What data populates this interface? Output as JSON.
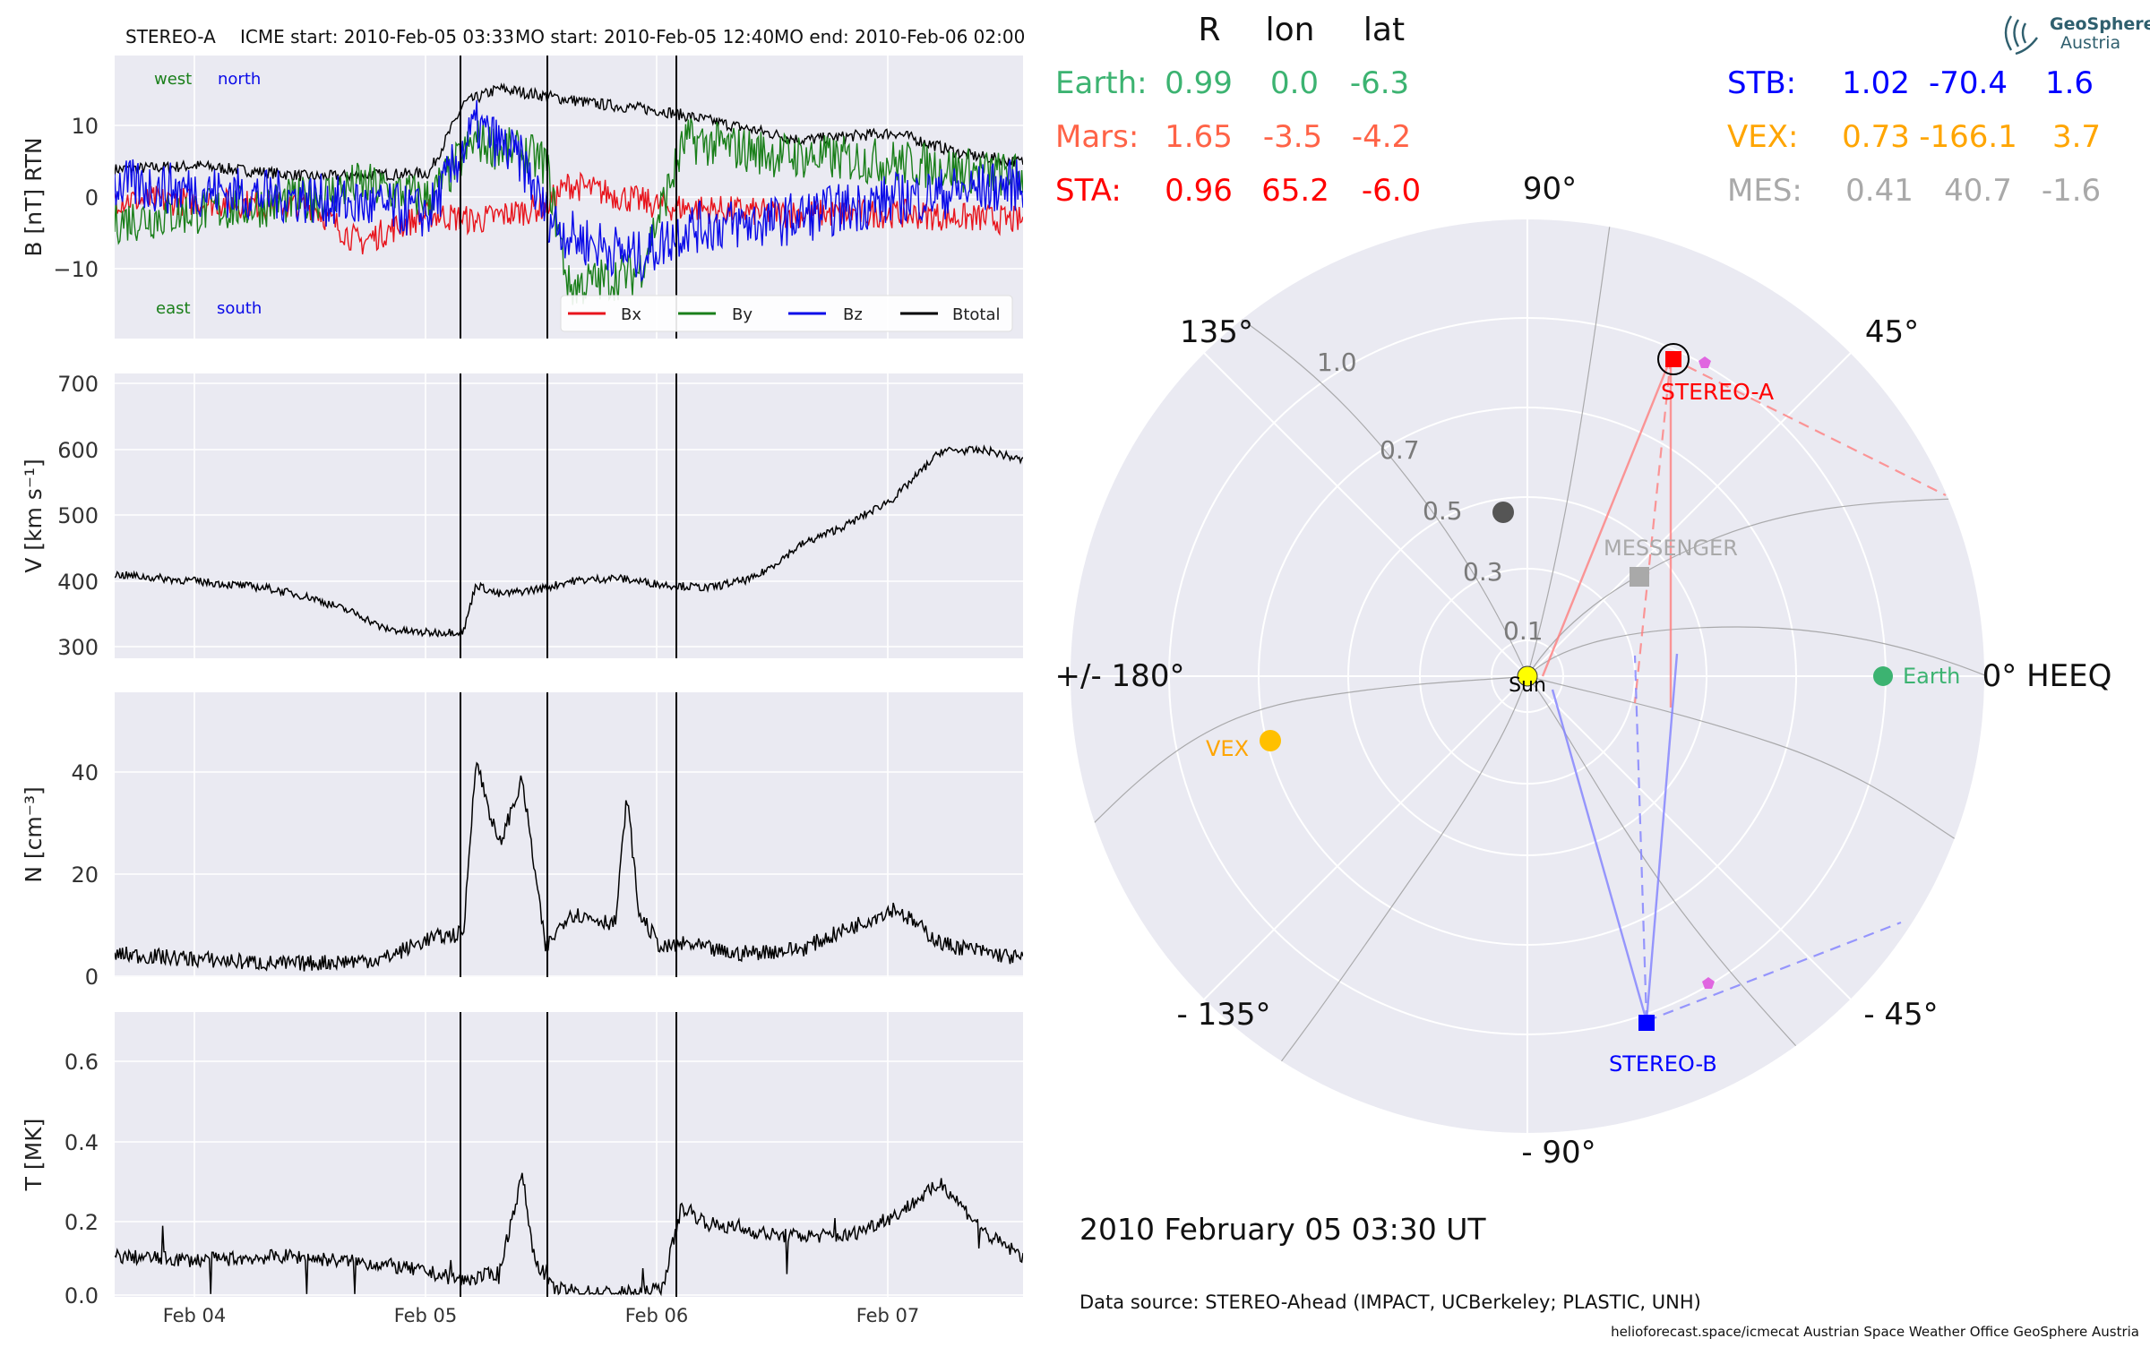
{
  "header": {
    "spacecraft": "STEREO-A",
    "icme_start": "ICME start: 2010-Feb-05 03:33",
    "mo_start": "MO start: 2010-Feb-05 12:40",
    "mo_end": "MO end: 2010-Feb-06 02:00"
  },
  "colors": {
    "bx": "#e8141c",
    "by": "#1a7f1a",
    "bz": "#0a0ae8",
    "btotal": "#000000",
    "earth": "#3cb371",
    "mars": "#ff6347",
    "sta": "#ff0000",
    "stb": "#0000ff",
    "vex": "#ffa500",
    "mes": "#a9a9a9",
    "panel_bg": "#eaeaf2"
  },
  "panels": {
    "b": {
      "ylabel": "B [nT] RTN",
      "ticks": [
        "10",
        "0",
        "−10"
      ],
      "west": "west",
      "north": "north",
      "east": "east",
      "south": "south",
      "legend": [
        "Bx",
        "By",
        "Bz",
        "Btotal"
      ]
    },
    "v": {
      "ylabel": "V [km s⁻¹]",
      "ticks": [
        "700",
        "600",
        "500",
        "400",
        "300"
      ]
    },
    "n": {
      "ylabel": "N [cm⁻³]",
      "ticks": [
        "40",
        "20",
        "0"
      ]
    },
    "t": {
      "ylabel": "T [MK]",
      "ticks": [
        "0.6",
        "0.4",
        "0.2",
        "0.0"
      ]
    },
    "xticks": [
      "Feb 04",
      "Feb 05",
      "Feb 06",
      "Feb 07"
    ]
  },
  "positions": {
    "headers": {
      "r": "R",
      "lon": "lon",
      "lat": "lat"
    },
    "left": [
      {
        "name": "Earth:",
        "r": "0.99",
        "lon": "0.0",
        "lat": "-6.3"
      },
      {
        "name": "Mars:",
        "r": "1.65",
        "lon": "-3.5",
        "lat": "-4.2"
      },
      {
        "name": "STA:",
        "r": "0.96",
        "lon": "65.2",
        "lat": "-6.0"
      }
    ],
    "right": [
      {
        "name": "STB:",
        "r": "1.02",
        "lon": "-70.4",
        "lat": "1.6"
      },
      {
        "name": "VEX:",
        "r": "0.73",
        "lon": "-166.1",
        "lat": "3.7"
      },
      {
        "name": "MES:",
        "r": "0.41",
        "lon": "40.7",
        "lat": "-1.6"
      }
    ]
  },
  "polar": {
    "angle_labels": {
      "a90": "90°",
      "a45": "45°",
      "a135": "135°",
      "a180": "+/- 180°",
      "a0": "0° HEEQ",
      "am45": "- 45°",
      "am90": "- 90°",
      "am135": "- 135°"
    },
    "radial_labels": [
      "1.0",
      "0.7",
      "0.5",
      "0.3",
      "0.1"
    ],
    "bodies": {
      "sun": "Sun",
      "earth": "Earth",
      "stereo_a": "STEREO-A",
      "stereo_b": "STEREO-B",
      "messenger": "MESSENGER",
      "vex": "VEX"
    }
  },
  "footer": {
    "datetime": "2010 February 05  03:30 UT",
    "data_source": "Data source: STEREO-Ahead (IMPACT, UCBerkeley; PLASTIC, UNH)",
    "credits": "helioforecast.space/icmecat   Austrian Space Weather Office   GeoSphere Austria"
  },
  "logo": {
    "line1": "GeoSphere",
    "line2": "Austria"
  },
  "chart_data": [
    {
      "type": "line",
      "title": "STEREO-A    ICME start: 2010-Feb-05 03:33    MO start: 2010-Feb-05 12:40    MO end: 2010-Feb-06 02:00",
      "xlabel": "",
      "ylabel": "B [nT] RTN",
      "x_unit": "days since 2010-02-04 00:00",
      "xlim": [
        -0.35,
        3.55
      ],
      "ylim": [
        -19,
        19.5
      ],
      "event_lines": [
        1.148,
        1.528,
        2.083
      ],
      "series": [
        {
          "name": "Btotal",
          "x": [
            -0.35,
            0,
            0.5,
            1.0,
            1.15,
            1.3,
            1.5,
            1.7,
            2.0,
            2.3,
            2.6,
            3.0,
            3.3,
            3.55
          ],
          "y": [
            4,
            4.5,
            3,
            3.5,
            13,
            15,
            14,
            13,
            12,
            10,
            8,
            9,
            6,
            5
          ]
        },
        {
          "name": "Bx",
          "x": [
            -0.35,
            0.5,
            0.7,
            1.0,
            1.2,
            1.5,
            1.6,
            2.0,
            2.5,
            3.0,
            3.55
          ],
          "y": [
            0,
            -1,
            -6,
            -2,
            -3,
            -1,
            2,
            -1,
            -2,
            -2,
            -3
          ]
        },
        {
          "name": "By",
          "x": [
            -0.35,
            0.5,
            0.7,
            1.0,
            1.2,
            1.5,
            1.6,
            1.9,
            2.1,
            2.5,
            3.0,
            3.55
          ],
          "y": [
            -3,
            0,
            2,
            0,
            8,
            5,
            -12,
            -10,
            8,
            6,
            5,
            3
          ]
        },
        {
          "name": "Bz",
          "x": [
            -0.35,
            0.5,
            1.0,
            1.2,
            1.4,
            1.5,
            1.6,
            1.9,
            2.1,
            2.5,
            3.0,
            3.55
          ],
          "y": [
            2,
            0,
            -2,
            10,
            5,
            -2,
            -5,
            -8,
            -4,
            -3,
            0,
            2
          ]
        }
      ]
    },
    {
      "type": "line",
      "xlabel": "",
      "ylabel": "V [km s⁻¹]",
      "xlim": [
        -0.35,
        3.55
      ],
      "ylim": [
        290,
        715
      ],
      "series": [
        {
          "name": "V",
          "x": [
            -0.35,
            0,
            0.3,
            0.5,
            0.7,
            0.8,
            0.9,
            1.0,
            1.148,
            1.2,
            1.3,
            1.5,
            1.6,
            1.8,
            2.0,
            2.2,
            2.4,
            2.6,
            2.8,
            3.0,
            3.2,
            3.4,
            3.55
          ],
          "y": [
            415,
            405,
            395,
            380,
            355,
            335,
            330,
            328,
            330,
            400,
            385,
            395,
            405,
            410,
            400,
            395,
            410,
            460,
            490,
            530,
            600,
            600,
            585
          ]
        }
      ]
    },
    {
      "type": "line",
      "xlabel": "",
      "ylabel": "N [cm⁻³]",
      "xlim": [
        -0.35,
        3.55
      ],
      "ylim": [
        -0.5,
        55
      ],
      "series": [
        {
          "name": "N",
          "x": [
            -0.35,
            0,
            0.4,
            0.8,
            1.0,
            1.148,
            1.2,
            1.3,
            1.4,
            1.5,
            1.6,
            1.8,
            1.85,
            1.9,
            2.0,
            2.1,
            2.3,
            2.6,
            3.0,
            3.2,
            3.55
          ],
          "y": [
            4,
            3,
            2,
            3,
            7,
            8,
            42,
            25,
            38,
            5,
            12,
            10,
            35,
            12,
            5,
            6,
            4,
            5,
            13,
            6,
            3
          ]
        }
      ]
    },
    {
      "type": "line",
      "xlabel": "",
      "ylabel": "T [MK]",
      "xlim": [
        -0.35,
        3.55
      ],
      "ylim": [
        0,
        0.7
      ],
      "series": [
        {
          "name": "T",
          "x": [
            -0.35,
            0,
            0.4,
            0.8,
            1.0,
            1.148,
            1.3,
            1.4,
            1.45,
            1.528,
            1.7,
            1.9,
            2.0,
            2.083,
            2.2,
            2.5,
            2.8,
            3.0,
            3.2,
            3.4,
            3.55
          ],
          "y": [
            0.1,
            0.09,
            0.1,
            0.08,
            0.06,
            0.04,
            0.06,
            0.3,
            0.1,
            0.02,
            0.01,
            0.01,
            0.02,
            0.22,
            0.18,
            0.15,
            0.15,
            0.2,
            0.28,
            0.15,
            0.1
          ]
        }
      ]
    }
  ]
}
